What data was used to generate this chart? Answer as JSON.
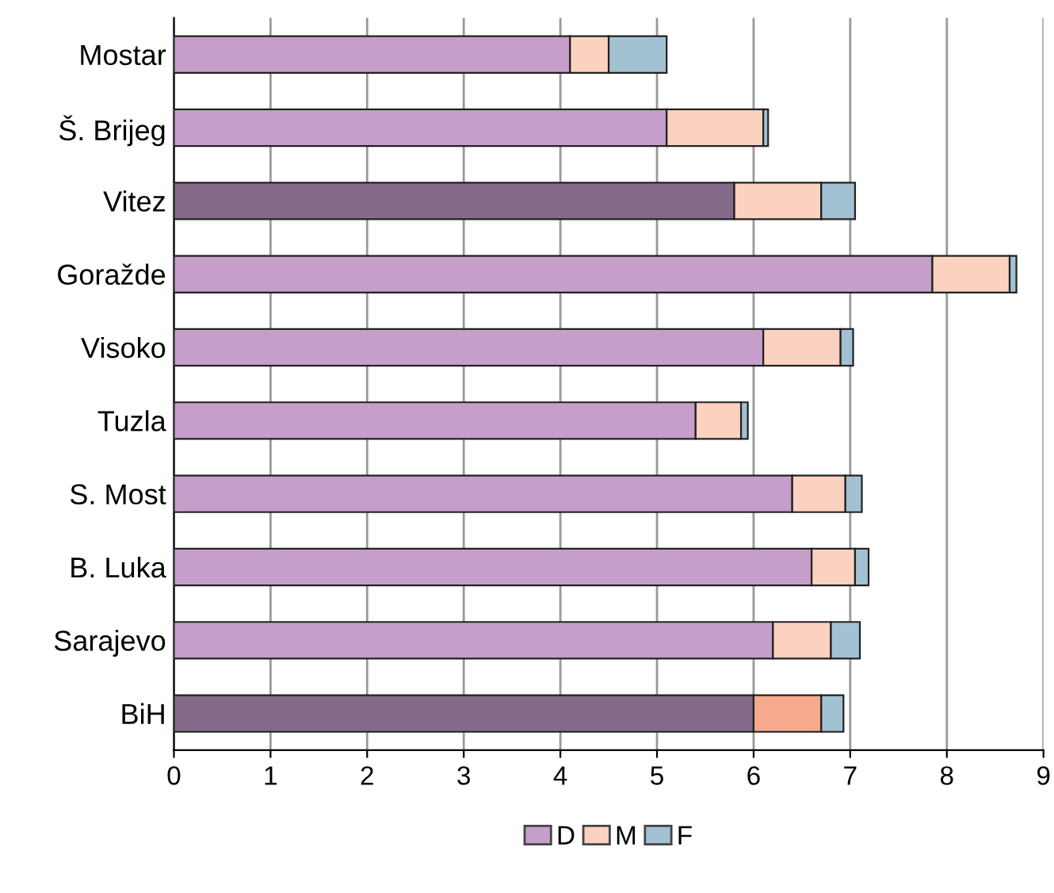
{
  "chart_data": {
    "type": "bar",
    "orientation": "horizontal",
    "stacked": true,
    "categories": [
      "Mostar",
      "Š. Brijeg",
      "Vitez",
      "Goražde",
      "Visoko",
      "Tuzla",
      "S. Most",
      "B. Luka",
      "Sarajevo",
      "BiH"
    ],
    "series": [
      {
        "name": "D",
        "color": "#c59ec9",
        "colors": [
          "#c59ec9",
          "#c59ec9",
          "#856a8a",
          "#c59ec9",
          "#c59ec9",
          "#c59ec9",
          "#c59ec9",
          "#c59ec9",
          "#c59ec9",
          "#856a8a"
        ],
        "values": [
          4.1,
          5.1,
          5.8,
          7.85,
          6.1,
          5.4,
          6.4,
          6.6,
          6.2,
          6.0
        ]
      },
      {
        "name": "M",
        "color": "#fbd1bf",
        "colors": [
          "#fbd1bf",
          "#fbd1bf",
          "#fbd1bf",
          "#fbd1bf",
          "#fbd1bf",
          "#fbd1bf",
          "#fbd1bf",
          "#fbd1bf",
          "#fbd1bf",
          "#f5aa8e"
        ],
        "values": [
          0.4,
          1.0,
          0.9,
          0.8,
          0.8,
          0.47,
          0.55,
          0.45,
          0.6,
          0.7
        ]
      },
      {
        "name": "F",
        "color": "#a2c2d3",
        "values": [
          0.6,
          0.05,
          0.35,
          0.07,
          0.13,
          0.07,
          0.17,
          0.14,
          0.3,
          0.23
        ]
      }
    ],
    "xlim": [
      0,
      9
    ],
    "xticks": [
      0,
      1,
      2,
      3,
      4,
      5,
      6,
      7,
      8,
      9
    ],
    "grid": "x",
    "legend": "bottom"
  }
}
